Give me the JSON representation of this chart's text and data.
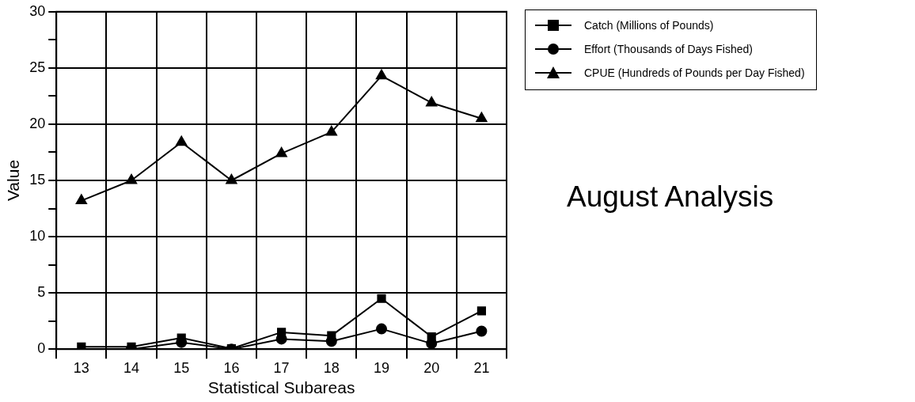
{
  "chart_data": {
    "type": "line",
    "title": "August Analysis",
    "xlabel": "Statistical Subareas",
    "ylabel": "Value",
    "categories": [
      "13",
      "14",
      "15",
      "16",
      "17",
      "18",
      "19",
      "20",
      "21"
    ],
    "series": [
      {
        "name": "Catch (Millions of Pounds)",
        "color": "#000000",
        "marker": "square",
        "values": [
          0.2,
          0.2,
          1.0,
          0.05,
          1.5,
          1.2,
          4.5,
          1.1,
          3.4
        ]
      },
      {
        "name": "Effort (Thousands of Days Fished)",
        "color": "#000000",
        "marker": "circle",
        "values": [
          null,
          0.0,
          0.6,
          0.0,
          0.9,
          0.7,
          1.8,
          0.5,
          1.6
        ]
      },
      {
        "name": "CPUE (Hundreds of Pounds per Day Fished)",
        "color": "#000000",
        "marker": "triangle",
        "values": [
          13.2,
          15.0,
          18.4,
          15.0,
          17.4,
          19.3,
          24.3,
          21.9,
          20.5
        ]
      }
    ],
    "ylim": [
      0,
      30
    ],
    "yticks": [
      0,
      {
        "value": 2.5,
        "label": null
      },
      5,
      {
        "value": 7.5,
        "label": null
      },
      10,
      {
        "value": 12.5,
        "label": null
      },
      15,
      {
        "value": 17.5,
        "label": null
      },
      20,
      {
        "value": 22.5,
        "label": null
      },
      25,
      {
        "value": 27.5,
        "label": null
      },
      30
    ],
    "grid": true,
    "legend": "top right",
    "line_style": "solid"
  }
}
